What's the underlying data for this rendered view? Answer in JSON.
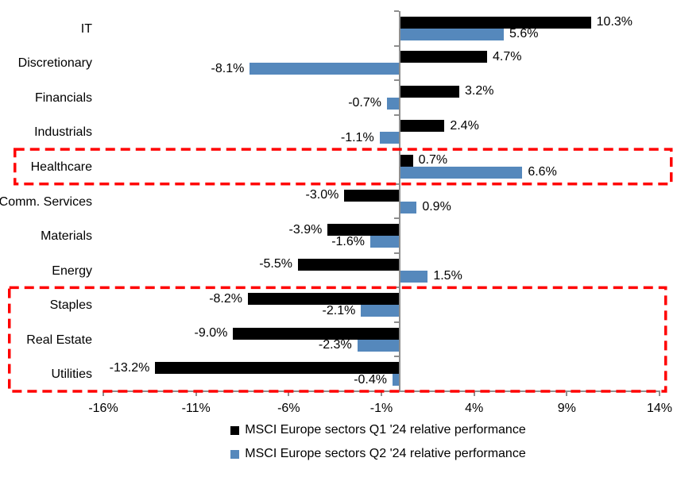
{
  "chart_data": {
    "type": "bar",
    "orientation": "horizontal",
    "title": "",
    "xlabel": "",
    "ylabel": "",
    "categories": [
      "IT",
      "Discretionary",
      "Financials",
      "Industrials",
      "Healthcare",
      "Comm. Services",
      "Materials",
      "Energy",
      "Staples",
      "Real Estate",
      "Utilities"
    ],
    "series": [
      {
        "name": "MSCI Europe sectors Q1 '24 relative performance",
        "color": "#000000",
        "values": [
          10.3,
          4.7,
          3.2,
          2.4,
          0.7,
          -3.0,
          -3.9,
          -5.5,
          -8.2,
          -9.0,
          -13.2
        ]
      },
      {
        "name": "MSCI Europe sectors Q2 '24 relative performance",
        "color": "#5588BC",
        "values": [
          5.6,
          -8.1,
          -0.7,
          -1.1,
          6.6,
          0.9,
          -1.6,
          1.5,
          -2.1,
          -2.3,
          -0.4
        ]
      }
    ],
    "value_suffix": "%",
    "value_decimals": 1,
    "xlim": [
      -16,
      14
    ],
    "xticks": [
      -16,
      -11,
      -6,
      -1,
      4,
      9,
      14
    ],
    "grid": false,
    "legend_position": "bottom",
    "axis_color": "#8e8e8e",
    "highlights": [
      {
        "sectors": [
          "Healthcare"
        ],
        "rows": [
          4,
          4
        ],
        "color": "#FF0000",
        "style": "dashed-box"
      },
      {
        "sectors": [
          "Staples",
          "Real Estate",
          "Utilities"
        ],
        "rows": [
          8,
          10
        ],
        "color": "#FF0000",
        "style": "dashed-box"
      }
    ]
  }
}
